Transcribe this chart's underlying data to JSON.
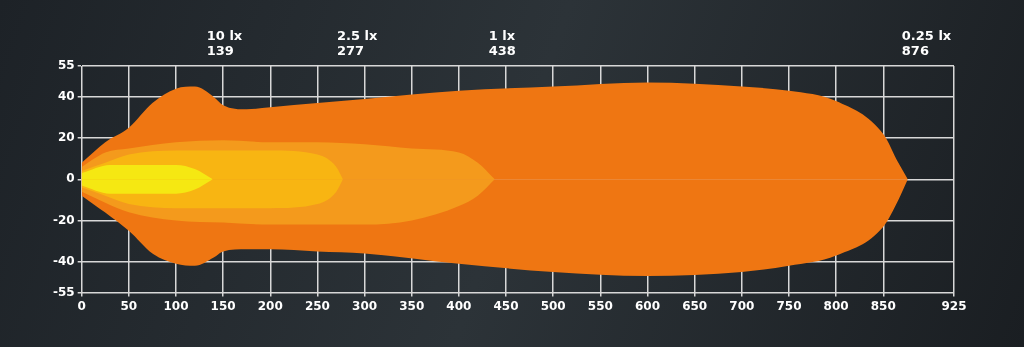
{
  "chart_data": {
    "type": "area",
    "xlim": [
      0,
      925
    ],
    "xticks": [
      0,
      50,
      100,
      150,
      200,
      250,
      300,
      350,
      400,
      450,
      500,
      550,
      600,
      650,
      700,
      750,
      800,
      850,
      925
    ],
    "ylim": [
      -55,
      55
    ],
    "yticks": [
      -55,
      -40,
      -20,
      0,
      20,
      40,
      55
    ],
    "grid": true,
    "series": [
      {
        "color": "#ef7612",
        "x": [
          0,
          25,
          50,
          75,
          100,
          120,
          140,
          150,
          175,
          200,
          250,
          300,
          400,
          500,
          600,
          700,
          750,
          800,
          850,
          866,
          876
        ],
        "values": [
          8,
          18,
          25,
          37,
          44,
          45,
          40,
          36,
          34,
          35,
          37,
          39,
          43,
          45,
          47,
          45,
          43,
          38,
          22,
          8,
          0
        ]
      },
      {
        "color": "#ef7612",
        "x": [
          0,
          50,
          75,
          100,
          120,
          140,
          150,
          175,
          200,
          250,
          300,
          400,
          500,
          600,
          700,
          750,
          800,
          850,
          866,
          876
        ],
        "values": [
          -8,
          -25,
          -36,
          -41,
          -42,
          -38,
          -35,
          -34,
          -34,
          -35,
          -36,
          -41,
          -45,
          -47,
          -45,
          -42,
          -37,
          -23,
          -10,
          0
        ]
      },
      {
        "color": "#f49a1c",
        "x": [
          0,
          25,
          50,
          100,
          150,
          200,
          250,
          300,
          350,
          400,
          420,
          438
        ],
        "values": [
          6,
          13,
          15,
          18,
          19,
          18,
          18,
          17,
          15,
          13,
          8,
          0
        ]
      },
      {
        "color": "#f49a1c",
        "x": [
          0,
          50,
          100,
          150,
          200,
          250,
          300,
          350,
          400,
          420,
          438
        ],
        "values": [
          -6,
          -16,
          -20,
          -21,
          -22,
          -22,
          -22,
          -20,
          -13,
          -8,
          0
        ]
      },
      {
        "color": "#f8b512",
        "x": [
          0,
          25,
          50,
          100,
          150,
          200,
          250,
          270,
          277
        ],
        "values": [
          4,
          8,
          12,
          14,
          14,
          14,
          12,
          6,
          0
        ]
      },
      {
        "color": "#f8b512",
        "x": [
          0,
          25,
          50,
          100,
          150,
          200,
          250,
          270,
          277
        ],
        "values": [
          -4,
          -8,
          -12,
          -14,
          -14,
          -14,
          -12,
          -6,
          0
        ]
      },
      {
        "color": "#f5e812",
        "x": [
          0,
          30,
          60,
          100,
          120,
          139
        ],
        "values": [
          3,
          7,
          7,
          7,
          5,
          0
        ]
      },
      {
        "color": "#f5e812",
        "x": [
          0,
          30,
          60,
          100,
          120,
          139
        ],
        "values": [
          -3,
          -7,
          -7,
          -7,
          -5,
          0
        ]
      }
    ],
    "annotations": [
      "10 lx\n139",
      "2.5 lx\n277",
      "1 lx\n438",
      "0.25 lx\n876"
    ]
  }
}
